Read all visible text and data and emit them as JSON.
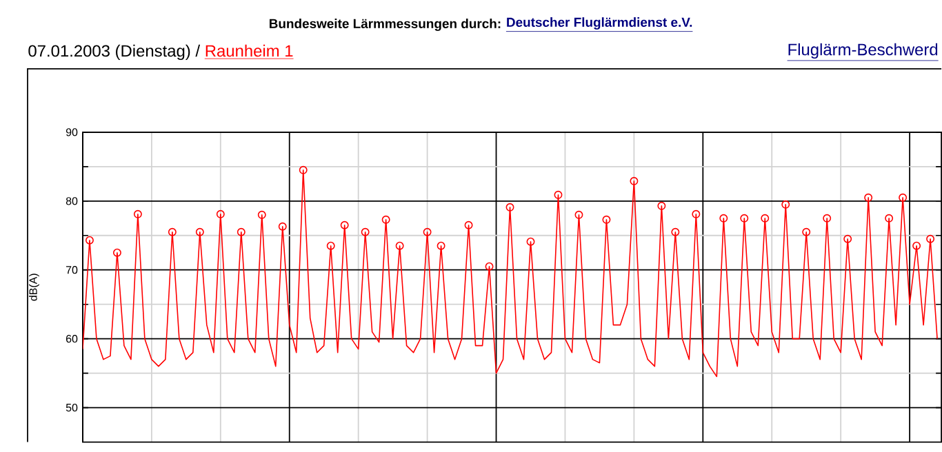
{
  "chart_data": {
    "type": "line",
    "title": "Bundesweite Lärmmessungen durch:",
    "annotations": [
      "Deutscher Fluglärmdienst e.V.",
      "07.01.2003 (Dienstag) /",
      "Raunheim 1",
      "Fluglärm-Beschwerd"
    ],
    "ylabel": "dB(A)",
    "categories": [
      null,
      null,
      null,
      null,
      null,
      null,
      null,
      null,
      null,
      null,
      null,
      null,
      null,
      null,
      null,
      null,
      null,
      null,
      null,
      null,
      null,
      null,
      null,
      null,
      null,
      null,
      null,
      null,
      null,
      null,
      null,
      null,
      null,
      null,
      null,
      null,
      null,
      null,
      null,
      null,
      null,
      null,
      null,
      null,
      null,
      null,
      null,
      null,
      null,
      null,
      null,
      null,
      null,
      null,
      null,
      null,
      null,
      null,
      null,
      null,
      null,
      null,
      null,
      null,
      null,
      null,
      null,
      null,
      null,
      null,
      null,
      null,
      null,
      null,
      null,
      null,
      null,
      null,
      null,
      null,
      null,
      null,
      null,
      null,
      null,
      null,
      null,
      null,
      null,
      null,
      null,
      null,
      null,
      null,
      null,
      null,
      null,
      null,
      null,
      null,
      null,
      null,
      null,
      null,
      null,
      null,
      null,
      null,
      null,
      null,
      null,
      null,
      null,
      null,
      null,
      null,
      null,
      null,
      null,
      null,
      null,
      null,
      null,
      null,
      null
    ],
    "ylim": [
      45,
      90
    ],
    "yticks": [
      50,
      {
        "value": 55,
        "label": null
      },
      60,
      {
        "value": 65,
        "label": null
      },
      70,
      {
        "value": 75,
        "label": null
      },
      80,
      {
        "value": 85,
        "label": null
      },
      90
    ],
    "tick_labels": "y",
    "grid": true,
    "series": [
      {
        "color": "#ff0000",
        "values": [
          58.5,
          74.3,
          60,
          57,
          57.5,
          72.5,
          59,
          57,
          78.1,
          60,
          57,
          56,
          57,
          75.5,
          60,
          57,
          58,
          75.5,
          62,
          58,
          78.1,
          60,
          58,
          75.5,
          60,
          58,
          78,
          60,
          56,
          76.3,
          62,
          58,
          84.5,
          63,
          58,
          59,
          73.5,
          58,
          76.5,
          60,
          58.5,
          75.5,
          61,
          59.5,
          77.3,
          60,
          73.5,
          59,
          58,
          60,
          75.5,
          58,
          73.5,
          60,
          57,
          60,
          76.5,
          59,
          59,
          70.5,
          55,
          57,
          79.1,
          60,
          57,
          74.1,
          60,
          57,
          58,
          80.9,
          60,
          58,
          78,
          60,
          57,
          56.5,
          77.3,
          62,
          62,
          65,
          82.9,
          60,
          57,
          56,
          79.3,
          60,
          75.5,
          60,
          57,
          78.1,
          58,
          56,
          54.5,
          77.5,
          60,
          56,
          77.5,
          61,
          59,
          77.5,
          61,
          58,
          79.5,
          60,
          60,
          75.5,
          60,
          57,
          77.5,
          60,
          58,
          74.5,
          60,
          57,
          80.5,
          61,
          59,
          77.5,
          62,
          80.5,
          65,
          73.5,
          62,
          74.5,
          60
        ]
      },
      {
        "type": "scatter",
        "color": "#ff0000",
        "marker": "circle",
        "values": [
          null,
          74.3,
          null,
          null,
          null,
          72.5,
          null,
          null,
          78.1,
          null,
          null,
          null,
          null,
          75.5,
          null,
          null,
          null,
          75.5,
          null,
          null,
          78.1,
          null,
          null,
          75.5,
          null,
          null,
          78,
          null,
          null,
          76.3,
          null,
          null,
          84.5,
          null,
          null,
          null,
          73.5,
          null,
          76.5,
          null,
          null,
          75.5,
          null,
          null,
          77.3,
          null,
          73.5,
          null,
          null,
          null,
          75.5,
          null,
          73.5,
          null,
          null,
          null,
          76.5,
          null,
          null,
          70.5,
          null,
          null,
          79.1,
          null,
          null,
          74.1,
          null,
          null,
          null,
          80.9,
          null,
          null,
          78,
          null,
          null,
          null,
          77.3,
          null,
          null,
          null,
          82.9,
          null,
          null,
          null,
          79.3,
          null,
          75.5,
          null,
          null,
          78.1,
          null,
          null,
          null,
          77.5,
          null,
          null,
          77.5,
          null,
          null,
          77.5,
          null,
          null,
          79.5,
          null,
          null,
          75.5,
          null,
          null,
          77.5,
          null,
          null,
          74.5,
          null,
          null,
          80.5,
          null,
          null,
          77.5,
          null,
          80.5,
          null,
          73.5,
          null,
          74.5,
          null
        ]
      }
    ]
  }
}
